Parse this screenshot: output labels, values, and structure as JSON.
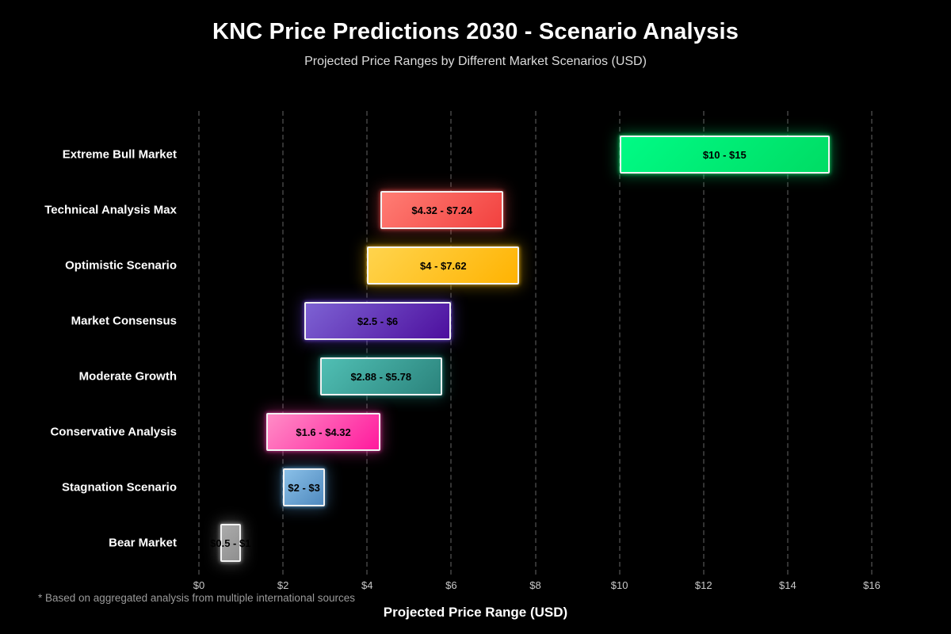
{
  "header": {
    "title": "KNC Price Predictions 2030 - Scenario Analysis",
    "subtitle": "Projected Price Ranges by Different Market Scenarios (USD)"
  },
  "footnote": "* Based on aggregated analysis from multiple international sources",
  "chart_data": {
    "type": "bar",
    "orientation": "horizontal-range",
    "title": "KNC Price Predictions 2030 - Scenario Analysis",
    "subtitle": "Projected Price Ranges by Different Market Scenarios (USD)",
    "xlabel": "Projected Price Range (USD)",
    "ylabel": "",
    "xlim": [
      0,
      16
    ],
    "grid": "vertical-dashed",
    "background_color": "#000000",
    "grid_color": "#333333",
    "x_ticks": [
      {
        "value": 0,
        "label": "$0"
      },
      {
        "value": 2,
        "label": "$2"
      },
      {
        "value": 4,
        "label": "$4"
      },
      {
        "value": 6,
        "label": "$6"
      },
      {
        "value": 8,
        "label": "$8"
      },
      {
        "value": 10,
        "label": "$10"
      },
      {
        "value": 12,
        "label": "$12"
      },
      {
        "value": 14,
        "label": "$14"
      },
      {
        "value": 16,
        "label": "$16"
      }
    ],
    "bars": [
      {
        "category": "Extreme Bull Market",
        "min": 10,
        "max": 15,
        "value_label": "$10 - $15",
        "fill_start": "#00fb85",
        "fill_end": "#00dc64",
        "glow": "#00ff7f"
      },
      {
        "category": "Technical Analysis Max",
        "min": 4.32,
        "max": 7.24,
        "value_label": "$4.32 - $7.24",
        "fill_start": "#ff7d74",
        "fill_end": "#f2413f",
        "glow": "#ff5252"
      },
      {
        "category": "Optimistic Scenario",
        "min": 4,
        "max": 7.62,
        "value_label": "$4 - $7.62",
        "fill_start": "#ffd44d",
        "fill_end": "#ffb302",
        "glow": "#ffc107"
      },
      {
        "category": "Market Consensus",
        "min": 2.5,
        "max": 6,
        "value_label": "$2.5 - $6",
        "fill_start": "#7d62d3",
        "fill_end": "#4d0f9e",
        "glow": "#7c4dff"
      },
      {
        "category": "Moderate Growth",
        "min": 2.88,
        "max": 5.78,
        "value_label": "$2.88 - $5.78",
        "fill_start": "#50bfb4",
        "fill_end": "#2b837c",
        "glow": "#26a69a"
      },
      {
        "category": "Conservative Analysis",
        "min": 1.6,
        "max": 4.32,
        "value_label": "$1.6 - $4.32",
        "fill_start": "#ff8cc6",
        "fill_end": "#ff1a9d",
        "glow": "#ff3daf"
      },
      {
        "category": "Stagnation Scenario",
        "min": 2,
        "max": 3,
        "value_label": "$2 - $3",
        "fill_start": "#8ac0e8",
        "fill_end": "#4f89be",
        "glow": "#64b5f6"
      },
      {
        "category": "Bear Market",
        "min": 0.5,
        "max": 1,
        "value_label": "$0.5 - $1",
        "fill_start": "#ababab",
        "fill_end": "#8f8f8f",
        "glow": "#bdbdbd"
      }
    ]
  }
}
